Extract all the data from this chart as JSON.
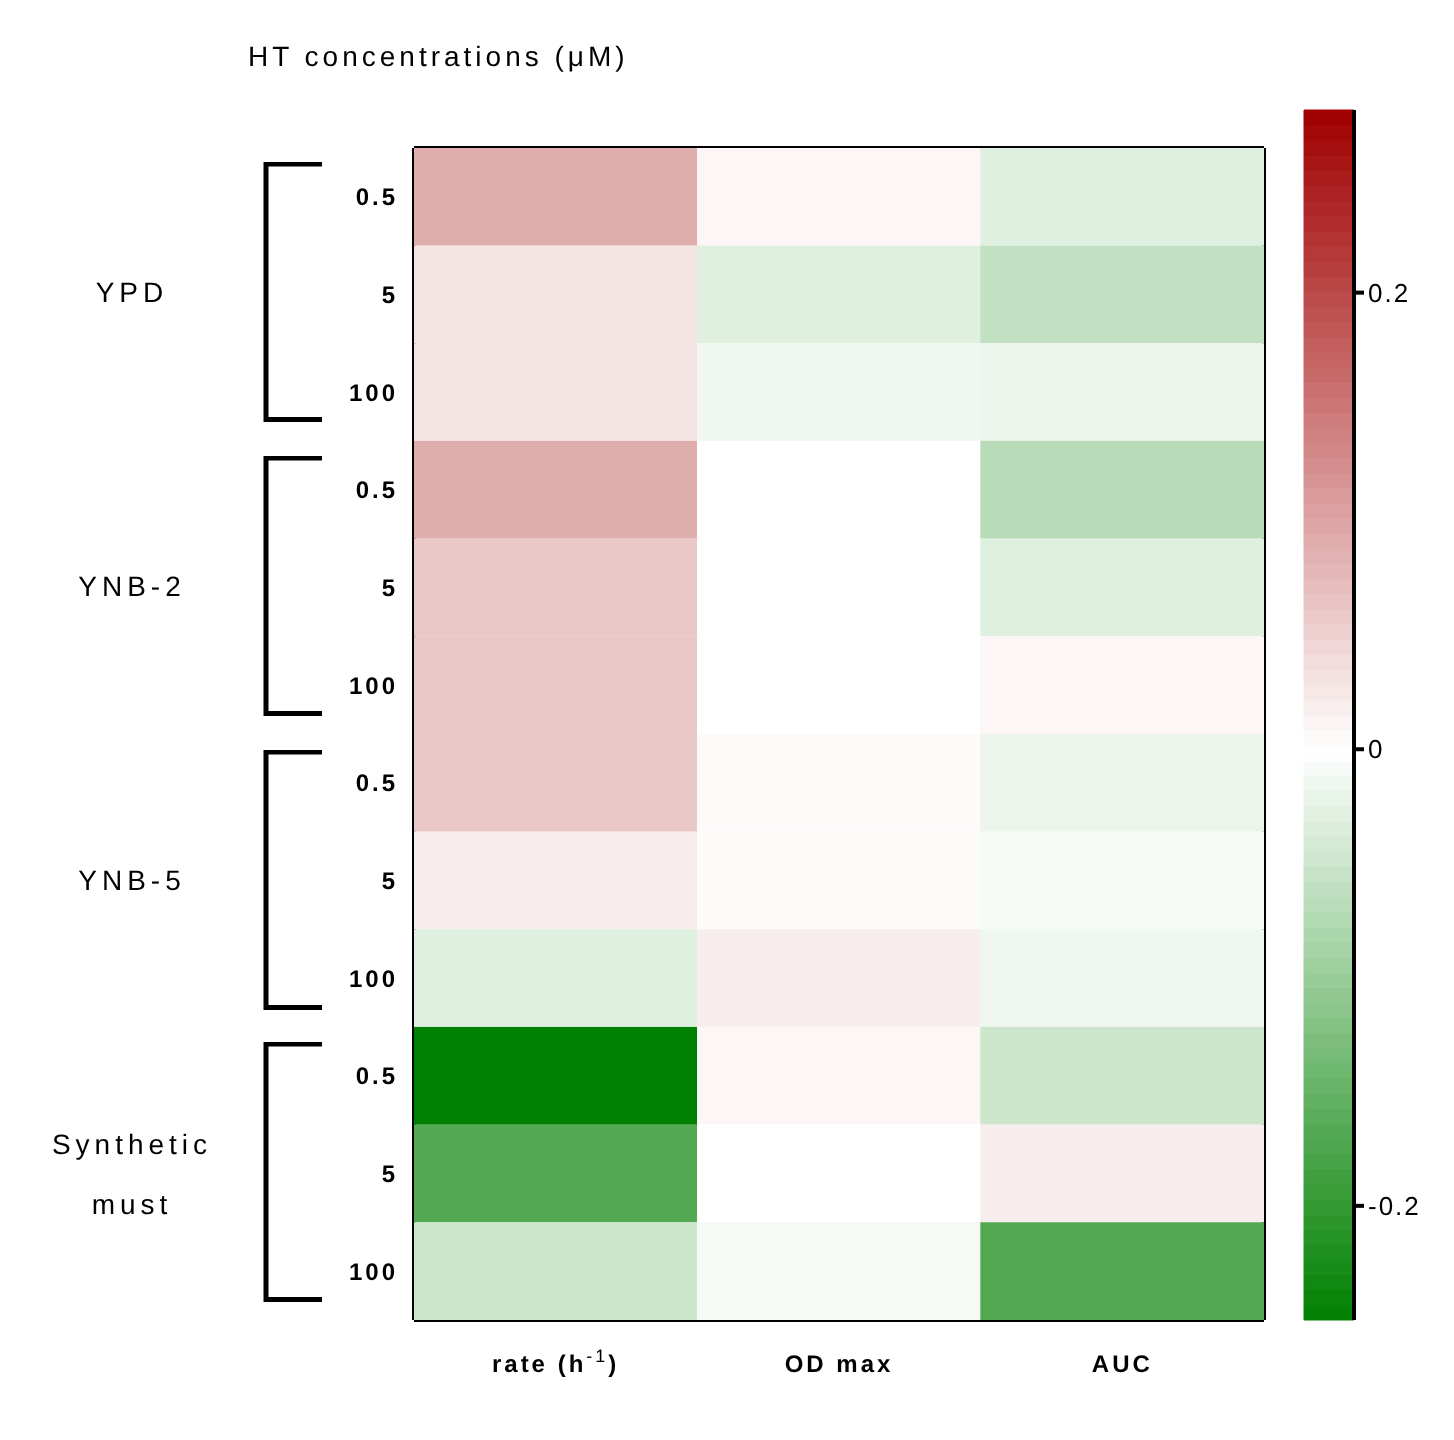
{
  "chart_data": {
    "type": "heatmap",
    "ylabel": "HT concentrations (μM)",
    "categories": [
      "rate (h$^{-1}$)",
      "OD max",
      "AUC"
    ],
    "y_categories": [
      "0.5",
      "5",
      "100",
      "0.5",
      "5",
      "100",
      "0.5",
      "5",
      "100",
      "0.5",
      "5",
      "100"
    ],
    "cells": [
      [
        0.09,
        0.01,
        -0.03
      ],
      [
        0.03,
        -0.03,
        -0.06
      ],
      [
        0.03,
        -0.015,
        -0.02
      ],
      [
        0.09,
        0,
        -0.07
      ],
      [
        0.06,
        0,
        -0.03
      ],
      [
        0.06,
        0,
        0.01
      ],
      [
        0.06,
        0.005,
        -0.02
      ],
      [
        0.02,
        0.005,
        -0.01
      ],
      [
        -0.03,
        0.02,
        -0.015
      ],
      [
        -0.25,
        0.01,
        -0.05
      ],
      [
        -0.17,
        0,
        0.02
      ],
      [
        -0.05,
        -0.01,
        -0.17
      ]
    ],
    "colors": [
      "#008000",
      "#ffffff",
      "#a00000"
    ],
    "clim": [
      -0.25,
      0.28
    ],
    "cticks": [
      -0.2,
      0,
      0.2
    ],
    "annotations": [
      "YPD",
      "YNB-2",
      "YNB-5",
      "Synthetic must"
    ]
  }
}
